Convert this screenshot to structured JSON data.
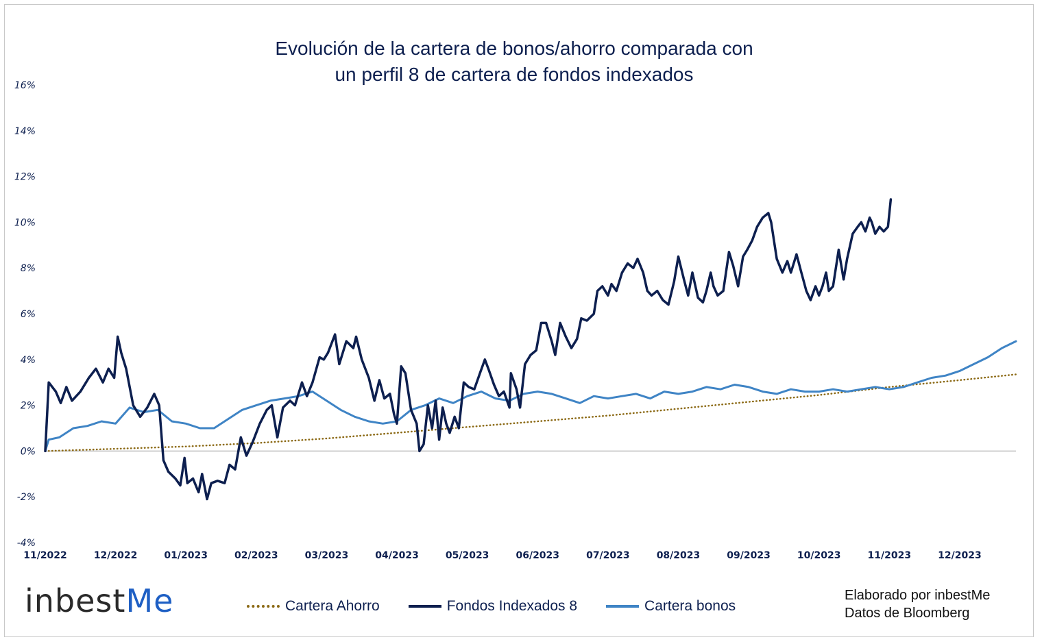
{
  "chart_data": {
    "type": "line",
    "title": "Evolución de la cartera de bonos/ahorro comparada con un perfil 8 de cartera de fondos indexados",
    "title_lines": [
      "Evolución de la cartera de bonos/ahorro comparada con",
      "un perfil 8 de cartera de fondos indexados"
    ],
    "y_ticks": [
      "16%",
      "14%",
      "12%",
      "10%",
      "8%",
      "6%",
      "4%",
      "2%",
      "0%",
      "-2%",
      "-4%"
    ],
    "ylim": [
      -4,
      16
    ],
    "x_ticks": [
      "11/2022",
      "12/2022",
      "01/2023",
      "02/2023",
      "03/2023",
      "04/2023",
      "05/2023",
      "06/2023",
      "07/2023",
      "08/2023",
      "09/2023",
      "10/2023",
      "11/2023",
      "12/2023"
    ],
    "xlim": [
      0,
      13.8
    ],
    "grid": false,
    "legend_position": "bottom",
    "series": [
      {
        "name": "Cartera Ahorro",
        "color": "#8b6914",
        "style": "dotted",
        "points": [
          [
            0,
            0
          ],
          [
            1,
            0.1
          ],
          [
            2,
            0.2
          ],
          [
            3,
            0.35
          ],
          [
            4,
            0.55
          ],
          [
            5,
            0.8
          ],
          [
            6,
            1.05
          ],
          [
            7,
            1.3
          ],
          [
            8,
            1.55
          ],
          [
            9,
            1.85
          ],
          [
            10,
            2.15
          ],
          [
            11,
            2.45
          ],
          [
            12,
            2.8
          ],
          [
            13,
            3.1
          ],
          [
            13.8,
            3.35
          ]
        ]
      },
      {
        "name": "Fondos Indexados 8",
        "color": "#0d1f4f",
        "style": "solid",
        "points": [
          [
            0,
            0
          ],
          [
            0.05,
            3.0
          ],
          [
            0.15,
            2.6
          ],
          [
            0.22,
            2.1
          ],
          [
            0.3,
            2.8
          ],
          [
            0.38,
            2.2
          ],
          [
            0.5,
            2.6
          ],
          [
            0.62,
            3.2
          ],
          [
            0.72,
            3.6
          ],
          [
            0.82,
            3.0
          ],
          [
            0.9,
            3.6
          ],
          [
            0.98,
            3.2
          ],
          [
            1.03,
            5.0
          ],
          [
            1.08,
            4.3
          ],
          [
            1.15,
            3.6
          ],
          [
            1.25,
            2.0
          ],
          [
            1.35,
            1.5
          ],
          [
            1.45,
            1.9
          ],
          [
            1.55,
            2.5
          ],
          [
            1.62,
            2.0
          ],
          [
            1.68,
            -0.4
          ],
          [
            1.75,
            -0.9
          ],
          [
            1.85,
            -1.2
          ],
          [
            1.92,
            -1.5
          ],
          [
            1.98,
            -0.3
          ],
          [
            2.02,
            -1.4
          ],
          [
            2.1,
            -1.2
          ],
          [
            2.18,
            -1.8
          ],
          [
            2.23,
            -1.0
          ],
          [
            2.3,
            -2.1
          ],
          [
            2.36,
            -1.4
          ],
          [
            2.45,
            -1.3
          ],
          [
            2.55,
            -1.4
          ],
          [
            2.62,
            -0.6
          ],
          [
            2.7,
            -0.8
          ],
          [
            2.78,
            0.6
          ],
          [
            2.86,
            -0.2
          ],
          [
            2.95,
            0.4
          ],
          [
            3.05,
            1.2
          ],
          [
            3.15,
            1.8
          ],
          [
            3.22,
            2.0
          ],
          [
            3.3,
            0.6
          ],
          [
            3.38,
            1.9
          ],
          [
            3.48,
            2.2
          ],
          [
            3.55,
            2.0
          ],
          [
            3.65,
            3.0
          ],
          [
            3.72,
            2.4
          ],
          [
            3.8,
            3.0
          ],
          [
            3.9,
            4.1
          ],
          [
            3.96,
            4.0
          ],
          [
            4.02,
            4.3
          ],
          [
            4.12,
            5.1
          ],
          [
            4.18,
            3.8
          ],
          [
            4.28,
            4.8
          ],
          [
            4.38,
            4.5
          ],
          [
            4.42,
            5.0
          ],
          [
            4.5,
            4.0
          ],
          [
            4.6,
            3.2
          ],
          [
            4.68,
            2.2
          ],
          [
            4.75,
            3.1
          ],
          [
            4.82,
            2.3
          ],
          [
            4.9,
            2.5
          ],
          [
            4.96,
            1.6
          ],
          [
            5.0,
            1.2
          ],
          [
            5.06,
            3.7
          ],
          [
            5.12,
            3.4
          ],
          [
            5.2,
            1.8
          ],
          [
            5.28,
            1.2
          ],
          [
            5.32,
            0.0
          ],
          [
            5.38,
            0.3
          ],
          [
            5.44,
            2.0
          ],
          [
            5.5,
            1.0
          ],
          [
            5.55,
            2.2
          ],
          [
            5.6,
            0.5
          ],
          [
            5.65,
            1.9
          ],
          [
            5.7,
            1.2
          ],
          [
            5.75,
            0.8
          ],
          [
            5.82,
            1.5
          ],
          [
            5.88,
            1.0
          ],
          [
            5.95,
            3.0
          ],
          [
            6.02,
            2.8
          ],
          [
            6.1,
            2.7
          ],
          [
            6.18,
            3.4
          ],
          [
            6.25,
            4.0
          ],
          [
            6.3,
            3.6
          ],
          [
            6.38,
            2.9
          ],
          [
            6.45,
            2.4
          ],
          [
            6.52,
            2.6
          ],
          [
            6.6,
            1.9
          ],
          [
            6.62,
            3.4
          ],
          [
            6.7,
            2.7
          ],
          [
            6.75,
            1.9
          ],
          [
            6.82,
            3.8
          ],
          [
            6.9,
            4.2
          ],
          [
            6.98,
            4.4
          ],
          [
            7.05,
            5.6
          ],
          [
            7.12,
            5.6
          ],
          [
            7.2,
            4.8
          ],
          [
            7.25,
            4.2
          ],
          [
            7.32,
            5.6
          ],
          [
            7.4,
            5.0
          ],
          [
            7.48,
            4.5
          ],
          [
            7.56,
            4.9
          ],
          [
            7.62,
            5.8
          ],
          [
            7.7,
            5.7
          ],
          [
            7.8,
            6.0
          ],
          [
            7.85,
            7.0
          ],
          [
            7.92,
            7.2
          ],
          [
            8.0,
            6.8
          ],
          [
            8.05,
            7.3
          ],
          [
            8.12,
            7.0
          ],
          [
            8.2,
            7.8
          ],
          [
            8.28,
            8.2
          ],
          [
            8.36,
            8.0
          ],
          [
            8.42,
            8.4
          ],
          [
            8.5,
            7.8
          ],
          [
            8.56,
            7.0
          ],
          [
            8.62,
            6.8
          ],
          [
            8.7,
            7.0
          ],
          [
            8.78,
            6.6
          ],
          [
            8.86,
            6.4
          ],
          [
            8.94,
            7.4
          ],
          [
            9.0,
            8.5
          ],
          [
            9.08,
            7.5
          ],
          [
            9.14,
            6.8
          ],
          [
            9.2,
            7.8
          ],
          [
            9.28,
            6.7
          ],
          [
            9.35,
            6.5
          ],
          [
            9.4,
            7.0
          ],
          [
            9.46,
            7.8
          ],
          [
            9.5,
            7.2
          ],
          [
            9.56,
            6.8
          ],
          [
            9.64,
            7.0
          ],
          [
            9.72,
            8.7
          ],
          [
            9.78,
            8.1
          ],
          [
            9.85,
            7.2
          ],
          [
            9.92,
            8.5
          ],
          [
            9.98,
            8.8
          ],
          [
            10.05,
            9.2
          ],
          [
            10.12,
            9.8
          ],
          [
            10.2,
            10.2
          ],
          [
            10.28,
            10.4
          ],
          [
            10.32,
            10.0
          ],
          [
            10.4,
            8.4
          ],
          [
            10.48,
            7.8
          ],
          [
            10.55,
            8.3
          ],
          [
            10.6,
            7.8
          ],
          [
            10.68,
            8.6
          ],
          [
            10.75,
            7.8
          ],
          [
            10.82,
            7.0
          ],
          [
            10.88,
            6.6
          ],
          [
            10.95,
            7.2
          ],
          [
            11.0,
            6.8
          ],
          [
            11.05,
            7.2
          ],
          [
            11.1,
            7.8
          ],
          [
            11.14,
            7.0
          ],
          [
            11.2,
            7.2
          ],
          [
            11.28,
            8.8
          ],
          [
            11.35,
            7.5
          ],
          [
            11.4,
            8.4
          ],
          [
            11.48,
            9.5
          ],
          [
            11.55,
            9.8
          ],
          [
            11.6,
            10.0
          ],
          [
            11.66,
            9.6
          ],
          [
            11.72,
            10.2
          ],
          [
            11.75,
            10.0
          ],
          [
            11.8,
            9.5
          ],
          [
            11.86,
            9.8
          ],
          [
            11.92,
            9.6
          ],
          [
            11.98,
            9.8
          ],
          [
            12.02,
            11.0
          ]
        ]
      },
      {
        "name": "Cartera bonos",
        "color": "#3f84c5",
        "style": "solid",
        "points": [
          [
            0,
            0
          ],
          [
            0.05,
            0.5
          ],
          [
            0.2,
            0.6
          ],
          [
            0.4,
            1.0
          ],
          [
            0.6,
            1.1
          ],
          [
            0.8,
            1.3
          ],
          [
            1.0,
            1.2
          ],
          [
            1.2,
            1.9
          ],
          [
            1.4,
            1.7
          ],
          [
            1.6,
            1.8
          ],
          [
            1.8,
            1.3
          ],
          [
            2.0,
            1.2
          ],
          [
            2.2,
            1.0
          ],
          [
            2.4,
            1.0
          ],
          [
            2.6,
            1.4
          ],
          [
            2.8,
            1.8
          ],
          [
            3.0,
            2.0
          ],
          [
            3.2,
            2.2
          ],
          [
            3.4,
            2.3
          ],
          [
            3.6,
            2.4
          ],
          [
            3.8,
            2.6
          ],
          [
            4.0,
            2.2
          ],
          [
            4.2,
            1.8
          ],
          [
            4.4,
            1.5
          ],
          [
            4.6,
            1.3
          ],
          [
            4.8,
            1.2
          ],
          [
            5.0,
            1.3
          ],
          [
            5.2,
            1.8
          ],
          [
            5.4,
            2.0
          ],
          [
            5.6,
            2.3
          ],
          [
            5.8,
            2.1
          ],
          [
            6.0,
            2.4
          ],
          [
            6.2,
            2.6
          ],
          [
            6.4,
            2.3
          ],
          [
            6.6,
            2.2
          ],
          [
            6.8,
            2.5
          ],
          [
            7.0,
            2.6
          ],
          [
            7.2,
            2.5
          ],
          [
            7.4,
            2.3
          ],
          [
            7.6,
            2.1
          ],
          [
            7.8,
            2.4
          ],
          [
            8.0,
            2.3
          ],
          [
            8.2,
            2.4
          ],
          [
            8.4,
            2.5
          ],
          [
            8.6,
            2.3
          ],
          [
            8.8,
            2.6
          ],
          [
            9.0,
            2.5
          ],
          [
            9.2,
            2.6
          ],
          [
            9.4,
            2.8
          ],
          [
            9.6,
            2.7
          ],
          [
            9.8,
            2.9
          ],
          [
            10.0,
            2.8
          ],
          [
            10.2,
            2.6
          ],
          [
            10.4,
            2.5
          ],
          [
            10.6,
            2.7
          ],
          [
            10.8,
            2.6
          ],
          [
            11.0,
            2.6
          ],
          [
            11.2,
            2.7
          ],
          [
            11.4,
            2.6
          ],
          [
            11.6,
            2.7
          ],
          [
            11.8,
            2.8
          ],
          [
            12.0,
            2.7
          ],
          [
            12.2,
            2.8
          ],
          [
            12.4,
            3.0
          ],
          [
            12.6,
            3.2
          ],
          [
            12.8,
            3.3
          ],
          [
            13.0,
            3.5
          ],
          [
            13.2,
            3.8
          ],
          [
            13.4,
            4.1
          ],
          [
            13.6,
            4.5
          ],
          [
            13.8,
            4.8
          ]
        ]
      }
    ]
  },
  "branding": {
    "logo_text": "inbest",
    "logo_accent": "Me"
  },
  "credit": {
    "line1": "Elaborado por inbestMe",
    "line2": "Datos de Bloomberg"
  }
}
